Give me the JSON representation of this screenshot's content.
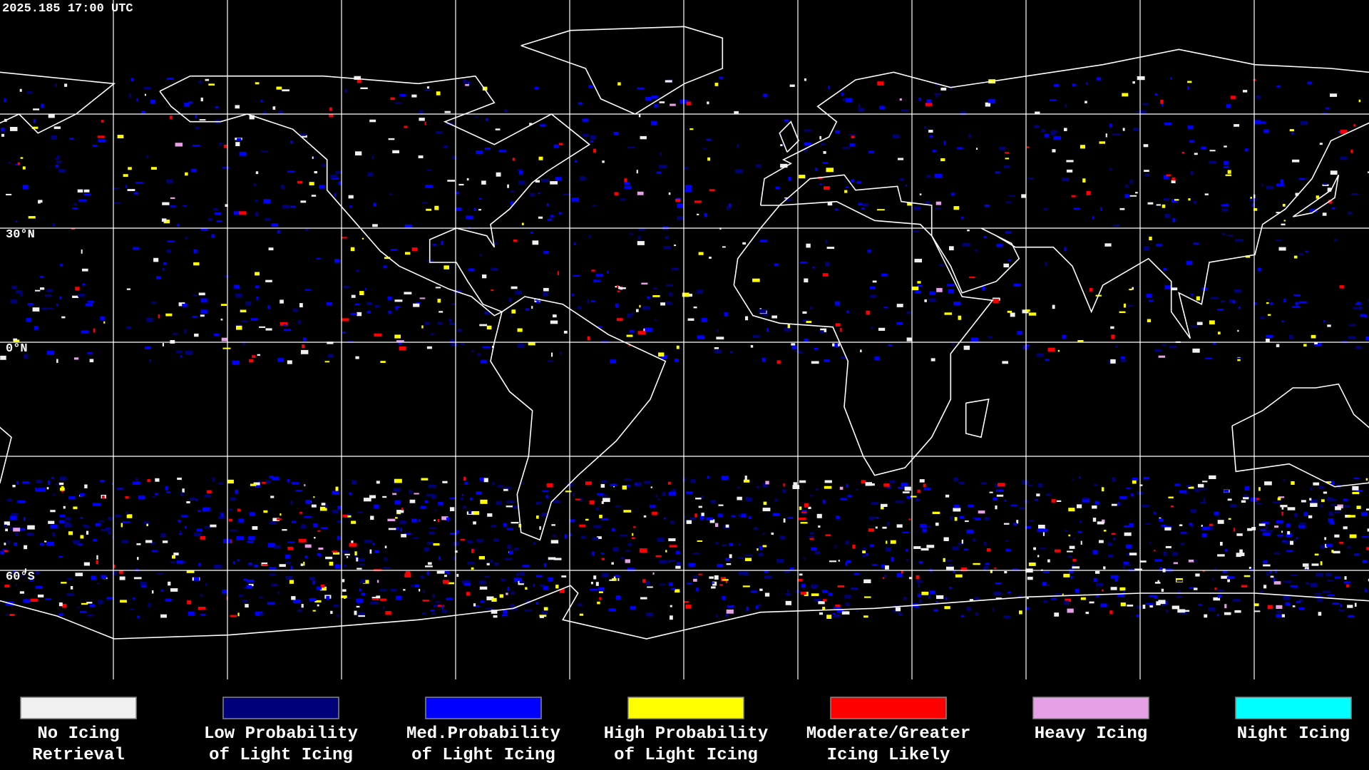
{
  "header": {
    "timestamp": "2025.185 17:00 UTC"
  },
  "map": {
    "latitude_labels": [
      "30°N",
      "0°N",
      "60°S"
    ]
  },
  "legend": {
    "items": [
      {
        "lines": [
          "No Icing",
          "Retrieval"
        ],
        "color": "#f0f0f0"
      },
      {
        "lines": [
          "Low Probability",
          "of Light Icing"
        ],
        "color": "#00007a"
      },
      {
        "lines": [
          "Med.Probability",
          "of Light Icing"
        ],
        "color": "#0000ff"
      },
      {
        "lines": [
          "High Probability",
          "of Light Icing"
        ],
        "color": "#ffff00"
      },
      {
        "lines": [
          "Moderate/Greater",
          "Icing Likely"
        ],
        "color": "#ff0000"
      },
      {
        "lines": [
          "Heavy Icing"
        ],
        "color": "#e6a0e6"
      },
      {
        "lines": [
          "Night Icing"
        ],
        "color": "#00ffff"
      }
    ]
  }
}
